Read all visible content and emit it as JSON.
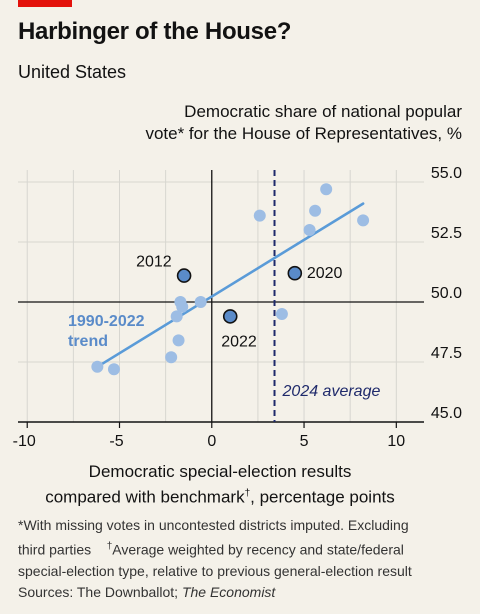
{
  "title": "Harbinger of the House?",
  "subtitle": "United States",
  "colors": {
    "accent_red": "#e3120b",
    "point": "#9dbde4",
    "highlight_point": "#5a8bc9",
    "trend": "#5a9bd8",
    "average_line": "#1f2a6b",
    "grid": "#d7d6d0",
    "axis": "#121212"
  },
  "chart_data": {
    "type": "scatter",
    "xlabel_line1": "Democratic special-election results",
    "xlabel_line2": "compared with benchmark",
    "xlabel_dagger": "†",
    "xlabel_line2_end": ", percentage points",
    "ylabel_line1": "Democratic share of national popular",
    "ylabel_line2": "vote* for the House of Representatives, %",
    "xlim": [
      -10.5,
      11.5
    ],
    "ylim": [
      45.0,
      55.5
    ],
    "x_ticks": [
      -10,
      -5,
      0,
      5,
      10
    ],
    "x_tick_labels": [
      "-10",
      "-5",
      "0",
      "5",
      "10"
    ],
    "y_ticks": [
      45.0,
      47.5,
      50.0,
      52.5,
      55.0
    ],
    "y_tick_labels": [
      "45.0",
      "47.5",
      "50.0",
      "52.5",
      "55.0"
    ],
    "x_minor_grid": [
      -7.5,
      -2.5,
      2.5,
      7.5
    ],
    "grid": true,
    "reference_lines": {
      "x": 0,
      "y": 50.0
    },
    "points": [
      {
        "x": -6.2,
        "y": 47.3
      },
      {
        "x": -5.3,
        "y": 47.2
      },
      {
        "x": -2.2,
        "y": 47.7
      },
      {
        "x": -1.8,
        "y": 48.4
      },
      {
        "x": -1.9,
        "y": 49.4
      },
      {
        "x": -1.7,
        "y": 50.0
      },
      {
        "x": -1.6,
        "y": 49.8
      },
      {
        "x": -0.6,
        "y": 50.0
      },
      {
        "x": 2.6,
        "y": 53.6
      },
      {
        "x": 3.8,
        "y": 49.5
      },
      {
        "x": 5.3,
        "y": 53.0
      },
      {
        "x": 5.6,
        "y": 53.8
      },
      {
        "x": 6.2,
        "y": 54.7
      },
      {
        "x": 8.2,
        "y": 53.4
      }
    ],
    "highlighted": [
      {
        "label": "2012",
        "x": -1.5,
        "y": 51.1
      },
      {
        "label": "2020",
        "x": 4.5,
        "y": 51.2
      },
      {
        "label": "2022",
        "x": 1.0,
        "y": 49.4
      }
    ],
    "trend": {
      "label_line1": "1990-2022",
      "label_line2": "trend",
      "x0": -6.2,
      "y0": 47.3,
      "x1": 8.2,
      "y1": 54.1
    },
    "average": {
      "label": "2024 average",
      "x": 3.4
    }
  },
  "footnote": {
    "line1": "*With missing votes in uncontested districts imputed. Excluding",
    "line2_a": "third parties",
    "dagger": "†",
    "line2_b": "Average weighted by recency and state/federal",
    "line3": "special-election type, relative to previous general-election result",
    "sources_prefix": "Sources: The Downballot; ",
    "sources_italic": "The Economist"
  }
}
